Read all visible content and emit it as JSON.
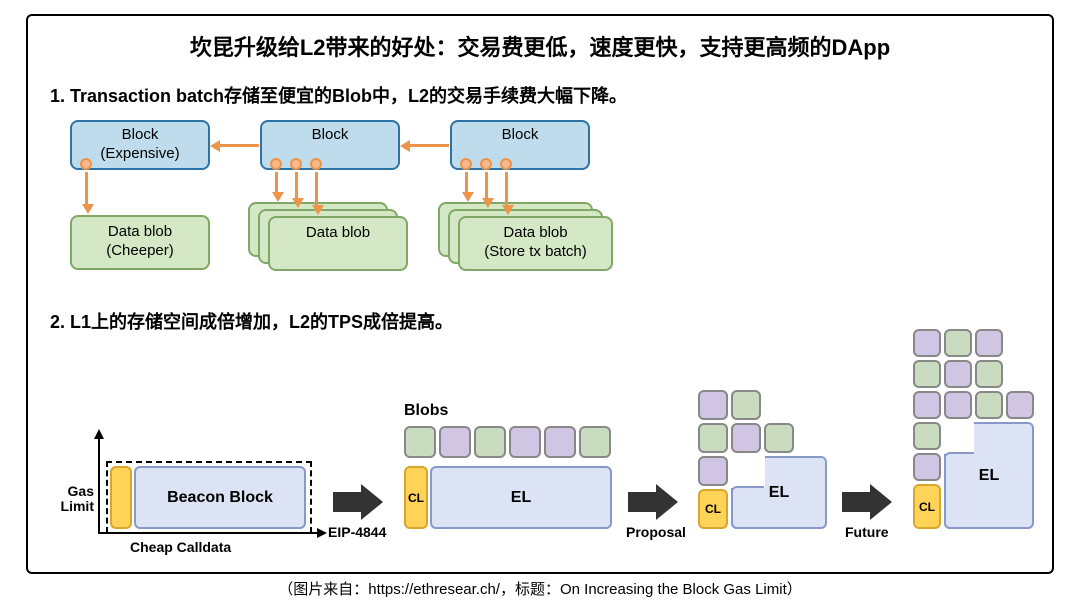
{
  "title": "坎昆升级给L2带来的好处：交易费更低，速度更快，支持更高频的DApp",
  "subtitle1": "1. Transaction batch存储至便宜的Blob中，L2的交易手续费大幅下降。",
  "subtitle2": "2. L1上的存储空间成倍增加，L2的TPS成倍提高。",
  "caption": "（图片来自：https://ethresear.ch/，标题：On Increasing the Block Gas Limit）",
  "s1": {
    "block1": "Block\n(Expensive)",
    "block2": "Block",
    "block3": "Block",
    "blob1": "Data blob\n(Cheeper)",
    "blob2": "Data blob",
    "blob3": "Data blob\n(Store tx batch)",
    "colors": {
      "block_fill": "#bfdcec",
      "block_border": "#2e73a6",
      "blob_fill": "#d5e8c6",
      "blob_border": "#7fa867",
      "arrow": "#ec9449",
      "dot_fill": "#f7b98a"
    }
  },
  "s2": {
    "blobs_label": "Blobs",
    "gas_limit": "Gas\nLimit",
    "cheap_calldata": "Cheap Calldata",
    "beacon": "Beacon Block",
    "cl": "CL",
    "el": "EL",
    "arrow1": "EIP-4844",
    "arrow2": "Proposal",
    "arrow3": "Future",
    "colors": {
      "el_fill": "#dbe3f4",
      "el_border": "#8898c8",
      "cl_fill": "#ffd358",
      "cl_border": "#d8a62a",
      "blob_green": "#c9dcc0",
      "blob_purple": "#d0c5e3",
      "arrow_fill": "#333333"
    }
  }
}
